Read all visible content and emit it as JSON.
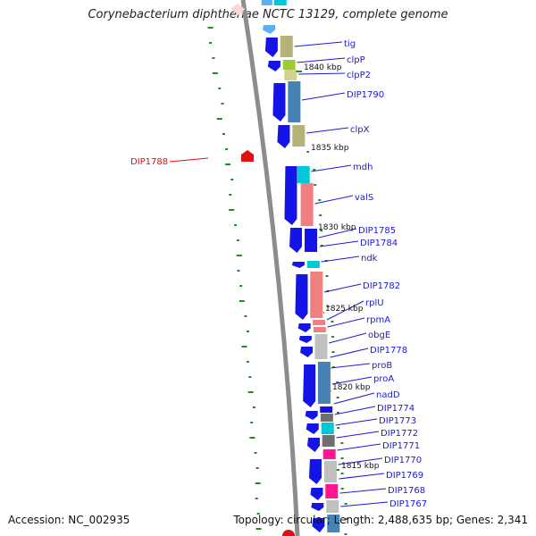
{
  "title": "Corynebacterium diphtheriae NCTC 13129, complete genome",
  "footer": {
    "accession": "Accession: NC_002935",
    "summary": "Topology: circular; Length: 2,488,635 bp; Genes: 2,341"
  },
  "kbp_ticks": [
    "1840 kbp",
    "1835 kbp",
    "1830 kbp",
    "1825 kbp",
    "1820 kbp",
    "1815 kbp"
  ],
  "genes": [
    "tig",
    "clpP",
    "clpP2",
    "DIP1790",
    "clpX",
    "mdh",
    "valS",
    "DIP1785",
    "DIP1784",
    "ndk",
    "DIP1782",
    "rplU",
    "rpmA",
    "obgE",
    "DIP1778",
    "proB",
    "proA",
    "nadD",
    "DIP1774",
    "DIP1773",
    "DIP1772",
    "DIP1771",
    "DIP1770",
    "DIP1769",
    "DIP1768",
    "DIP1767"
  ],
  "outer_feature": "DIP1788",
  "colors": {
    "gene_arrow": "#1414e6",
    "label": "#1a1ad6",
    "backbone": "#808080",
    "gc_skew": "#228b22",
    "outer_feature": "#e01010"
  }
}
